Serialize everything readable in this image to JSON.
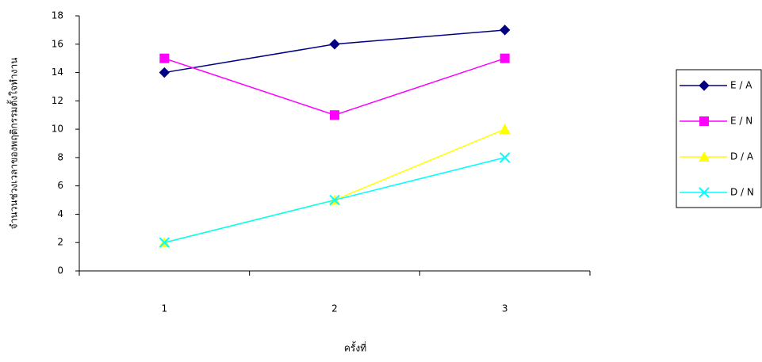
{
  "chart_data": {
    "type": "line",
    "x_label": "ครั้งที่",
    "y_label": "จำนวนช่วงเวลาของพฤติกรรมตั้งใจทำงาน",
    "categories": [
      "1",
      "2",
      "3"
    ],
    "series": [
      {
        "name": "E / A",
        "color": "#000080",
        "marker": "diamond",
        "values": [
          14,
          16,
          17
        ]
      },
      {
        "name": "E / N",
        "color": "#ff00ff",
        "marker": "square",
        "values": [
          15,
          11,
          15
        ]
      },
      {
        "name": "D / A",
        "color": "#ffff00",
        "marker": "triangle",
        "values": [
          2,
          5,
          10
        ]
      },
      {
        "name": "D / N",
        "color": "#00ffff",
        "marker": "x",
        "values": [
          2,
          5,
          8
        ]
      }
    ],
    "ylim": [
      0,
      18
    ],
    "yticks": [
      0,
      2,
      4,
      6,
      8,
      10,
      12,
      14,
      16,
      18
    ],
    "grid": false,
    "legend": "right"
  }
}
